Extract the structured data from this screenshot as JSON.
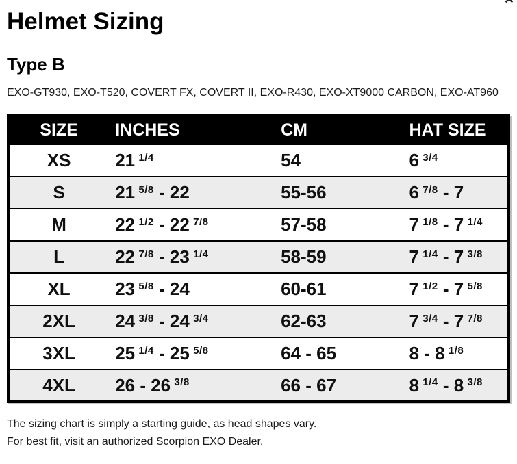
{
  "header": {
    "title": "Helmet Sizing",
    "subtitle": "Type B",
    "models": "EXO-GT930, EXO-T520, COVERT FX, COVERT II, EXO-R430, EXO-XT9000 CARBON, EXO-AT960"
  },
  "icons": {
    "close": "✕"
  },
  "table": {
    "columns": [
      "SIZE",
      "INCHES",
      "CM",
      "HAT SIZE"
    ],
    "rows": [
      {
        "size": "XS",
        "inches": "21 1/4",
        "cm": "54",
        "hat_size": "6 3/4"
      },
      {
        "size": "S",
        "inches": "21 5/8 - 22",
        "cm": "55-56",
        "hat_size": "6 7/8 - 7"
      },
      {
        "size": "M",
        "inches": "22 1/2 - 22 7/8",
        "cm": "57-58",
        "hat_size": "7 1/8 - 7 1/4"
      },
      {
        "size": "L",
        "inches": "22 7/8 - 23 1/4",
        "cm": "58-59",
        "hat_size": "7 1/4 - 7 3/8"
      },
      {
        "size": "XL",
        "inches": "23 5/8 - 24",
        "cm": "60-61",
        "hat_size": "7 1/2 - 7 5/8"
      },
      {
        "size": "2XL",
        "inches": "24 3/8 - 24 3/4",
        "cm": "62-63",
        "hat_size": "7 3/4 - 7 7/8"
      },
      {
        "size": "3XL",
        "inches": "25 1/4 - 25 5/8",
        "cm": "64 - 65",
        "hat_size": "8 - 8 1/8"
      },
      {
        "size": "4XL",
        "inches": "26 - 26 3/8",
        "cm": "66 - 67",
        "hat_size": "8 1/4 - 8 3/8"
      }
    ]
  },
  "footer": {
    "line1": "The sizing chart is simply a starting guide, as head shapes vary.",
    "line2": "For best fit, visit an authorized Scorpion EXO Dealer."
  },
  "colors": {
    "header_bg": "#000000",
    "header_text": "#ffffff",
    "row_alt_bg": "#ececec",
    "border": "#000000",
    "text": "#111111"
  }
}
